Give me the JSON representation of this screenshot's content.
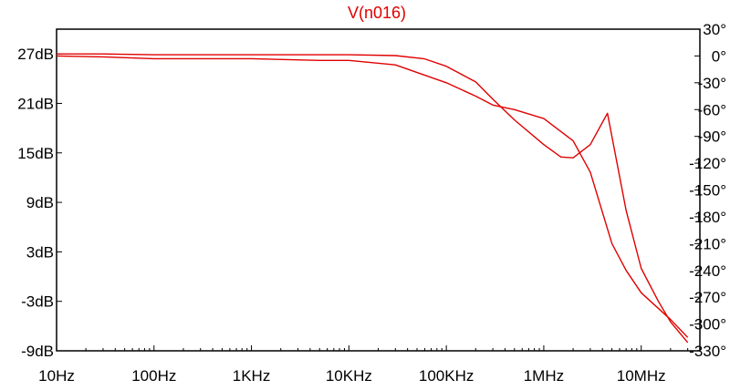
{
  "chart_data": {
    "type": "line",
    "title": "V(n016)",
    "x_scale": "log",
    "xlim": [
      10,
      40000000
    ],
    "x_ticks": [
      {
        "value": 10,
        "label": "10Hz"
      },
      {
        "value": 100,
        "label": "100Hz"
      },
      {
        "value": 1000,
        "label": "1KHz"
      },
      {
        "value": 10000,
        "label": "10KHz"
      },
      {
        "value": 100000,
        "label": "100KHz"
      },
      {
        "value": 1000000,
        "label": "1MHz"
      },
      {
        "value": 10000000,
        "label": "10MHz"
      }
    ],
    "y_left": {
      "unit": "dB",
      "ylim": [
        -9,
        30
      ],
      "ticks": [
        {
          "value": 27,
          "label": "27dB"
        },
        {
          "value": 21,
          "label": "21dB"
        },
        {
          "value": 15,
          "label": "15dB"
        },
        {
          "value": 9,
          "label": "9dB"
        },
        {
          "value": 3,
          "label": "3dB"
        },
        {
          "value": -3,
          "label": "-3dB"
        },
        {
          "value": -9,
          "label": "-9dB"
        }
      ]
    },
    "y_right": {
      "unit": "degrees",
      "ylim": [
        -330,
        30
      ],
      "ticks": [
        {
          "value": 30,
          "label": "30°"
        },
        {
          "value": 0,
          "label": "0°"
        },
        {
          "value": -30,
          "label": "-30°"
        },
        {
          "value": -60,
          "label": "-60°"
        },
        {
          "value": -90,
          "label": "-90°"
        },
        {
          "value": -120,
          "label": "-120°"
        },
        {
          "value": -150,
          "label": "-150°"
        },
        {
          "value": -180,
          "label": "-180°"
        },
        {
          "value": -210,
          "label": "-210°"
        },
        {
          "value": -240,
          "label": "-240°"
        },
        {
          "value": -270,
          "label": "-270°"
        },
        {
          "value": -300,
          "label": "-300°"
        },
        {
          "value": -330,
          "label": "-330°"
        }
      ]
    },
    "grid": false,
    "color": "#e00000",
    "series": [
      {
        "axis": "left",
        "x": [
          10,
          30,
          100,
          1000,
          10000,
          30000,
          60000,
          100000,
          200000,
          300000,
          500000,
          1000000,
          1500000,
          2000000,
          3000000,
          4500000,
          7000000,
          10000000,
          15000000,
          20000000,
          30000000
        ],
        "values": [
          27,
          27,
          26.9,
          26.9,
          26.9,
          26.8,
          26.4,
          25.5,
          23.6,
          21.5,
          19,
          16,
          14.5,
          14.4,
          16,
          19.8,
          8,
          1,
          -3,
          -5.5,
          -8
        ]
      },
      {
        "axis": "right",
        "x": [
          10,
          30,
          100,
          1000,
          5000,
          10000,
          30000,
          100000,
          200000,
          300000,
          500000,
          1000000,
          2000000,
          3000000,
          5000000,
          7000000,
          10000000,
          20000000,
          30000000
        ],
        "values": [
          0,
          -1,
          -3,
          -3,
          -5,
          -5,
          -10,
          -30,
          -45,
          -55,
          -60,
          -70,
          -95,
          -130,
          -210,
          -240,
          -265,
          -295,
          -315
        ]
      }
    ]
  }
}
